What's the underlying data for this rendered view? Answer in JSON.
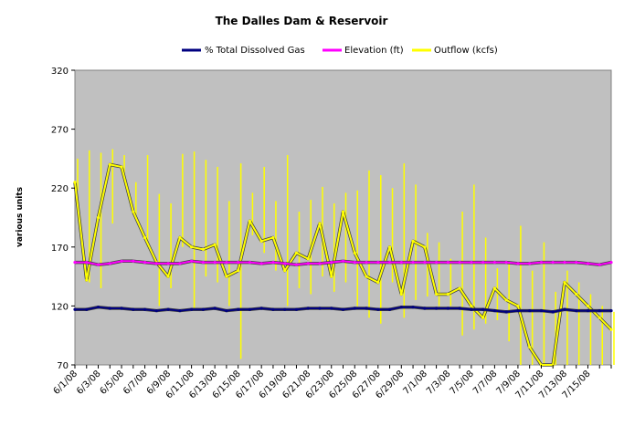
{
  "chart_data": {
    "type": "line",
    "title": "The Dalles Dam & Reservoir",
    "ylabel": "various units",
    "xlabel": "",
    "ylim": [
      70,
      320
    ],
    "yticks": [
      70,
      120,
      170,
      220,
      270,
      320
    ],
    "grid": false,
    "legend_position": "top",
    "x_tick_labels": [
      "6/1/08",
      "6/3/08",
      "6/5/08",
      "6/7/08",
      "6/9/08",
      "6/11/08",
      "6/13/08",
      "6/15/08",
      "6/17/08",
      "6/19/08",
      "6/21/08",
      "6/23/08",
      "6/25/08",
      "6/27/08",
      "6/29/08",
      "7/1/08",
      "7/3/08",
      "7/5/08",
      "7/7/08",
      "7/9/08",
      "7/11/08",
      "7/13/08",
      "7/15/08"
    ],
    "x_range_days": [
      0,
      46
    ],
    "colors": {
      "plot_background": "#c0c0c0",
      "dissolved_gas": "#000080",
      "elevation": "#ff00ff",
      "outflow": "#ffff00"
    },
    "series": [
      {
        "name": "% Total Dissolved Gas",
        "color": "#000080",
        "x": [
          0,
          1,
          2,
          3,
          4,
          5,
          6,
          7,
          8,
          9,
          10,
          11,
          12,
          13,
          14,
          15,
          16,
          17,
          18,
          19,
          20,
          21,
          22,
          23,
          24,
          25,
          26,
          27,
          28,
          29,
          30,
          31,
          32,
          33,
          34,
          35,
          36,
          37,
          38,
          39,
          40,
          41,
          42,
          43,
          44,
          45,
          46
        ],
        "values": [
          117,
          117,
          119,
          118,
          118,
          117,
          117,
          116,
          117,
          116,
          117,
          117,
          118,
          116,
          117,
          117,
          118,
          117,
          117,
          117,
          118,
          118,
          118,
          117,
          118,
          118,
          117,
          117,
          119,
          119,
          118,
          118,
          118,
          118,
          117,
          117,
          116,
          115,
          116,
          116,
          116,
          115,
          117,
          116,
          116,
          116,
          116
        ]
      },
      {
        "name": "Elevation (ft)",
        "color": "#ff00ff",
        "x": [
          0,
          1,
          2,
          3,
          4,
          5,
          6,
          7,
          8,
          9,
          10,
          11,
          12,
          13,
          14,
          15,
          16,
          17,
          18,
          19,
          20,
          21,
          22,
          23,
          24,
          25,
          26,
          27,
          28,
          29,
          30,
          31,
          32,
          33,
          34,
          35,
          36,
          37,
          38,
          39,
          40,
          41,
          42,
          43,
          44,
          45,
          46
        ],
        "values": [
          157,
          157,
          155,
          156,
          158,
          158,
          157,
          156,
          156,
          156,
          158,
          157,
          157,
          157,
          157,
          157,
          156,
          157,
          156,
          155,
          156,
          156,
          157,
          158,
          157,
          157,
          157,
          157,
          157,
          157,
          157,
          157,
          157,
          157,
          157,
          157,
          157,
          157,
          156,
          156,
          157,
          157,
          157,
          157,
          156,
          155,
          157
        ]
      },
      {
        "name": "Outflow (kcfs)",
        "color": "#ffff00",
        "x": [
          0,
          1,
          2,
          3,
          4,
          5,
          6,
          7,
          8,
          9,
          10,
          11,
          12,
          13,
          14,
          15,
          16,
          17,
          18,
          19,
          20,
          21,
          22,
          23,
          24,
          25,
          26,
          27,
          28,
          29,
          30,
          31,
          32,
          33,
          34,
          35,
          36,
          37,
          38,
          39,
          40,
          41,
          42,
          43,
          44,
          45,
          46
        ],
        "values": [
          225,
          142,
          195,
          240,
          238,
          200,
          178,
          157,
          145,
          178,
          170,
          168,
          172,
          145,
          150,
          192,
          175,
          178,
          150,
          165,
          160,
          190,
          145,
          200,
          165,
          145,
          140,
          170,
          130,
          175,
          170,
          130,
          130,
          135,
          120,
          110,
          135,
          125,
          120,
          85,
          70,
          60,
          140,
          130,
          120,
          110,
          100
        ],
        "daily_high": [
          245,
          252,
          250,
          253,
          248,
          225,
          248,
          215,
          207,
          249,
          251,
          244,
          238,
          209,
          241,
          216,
          238,
          209,
          248,
          200,
          210,
          221,
          207,
          216,
          218,
          235,
          231,
          220,
          241,
          223,
          182,
          174,
          160,
          200,
          223,
          178,
          152,
          156,
          188,
          150,
          174,
          132,
          150,
          140,
          130,
          120,
          115
        ],
        "daily_low": [
          218,
          140,
          135,
          190,
          228,
          195,
          170,
          120,
          135,
          170,
          118,
          145,
          140,
          120,
          75,
          180,
          165,
          150,
          120,
          135,
          130,
          145,
          132,
          140,
          120,
          110,
          105,
          140,
          110,
          125,
          128,
          120,
          120,
          95,
          100,
          105,
          108,
          90,
          60,
          60,
          60,
          60,
          60,
          60,
          60,
          60,
          60
        ]
      }
    ]
  }
}
